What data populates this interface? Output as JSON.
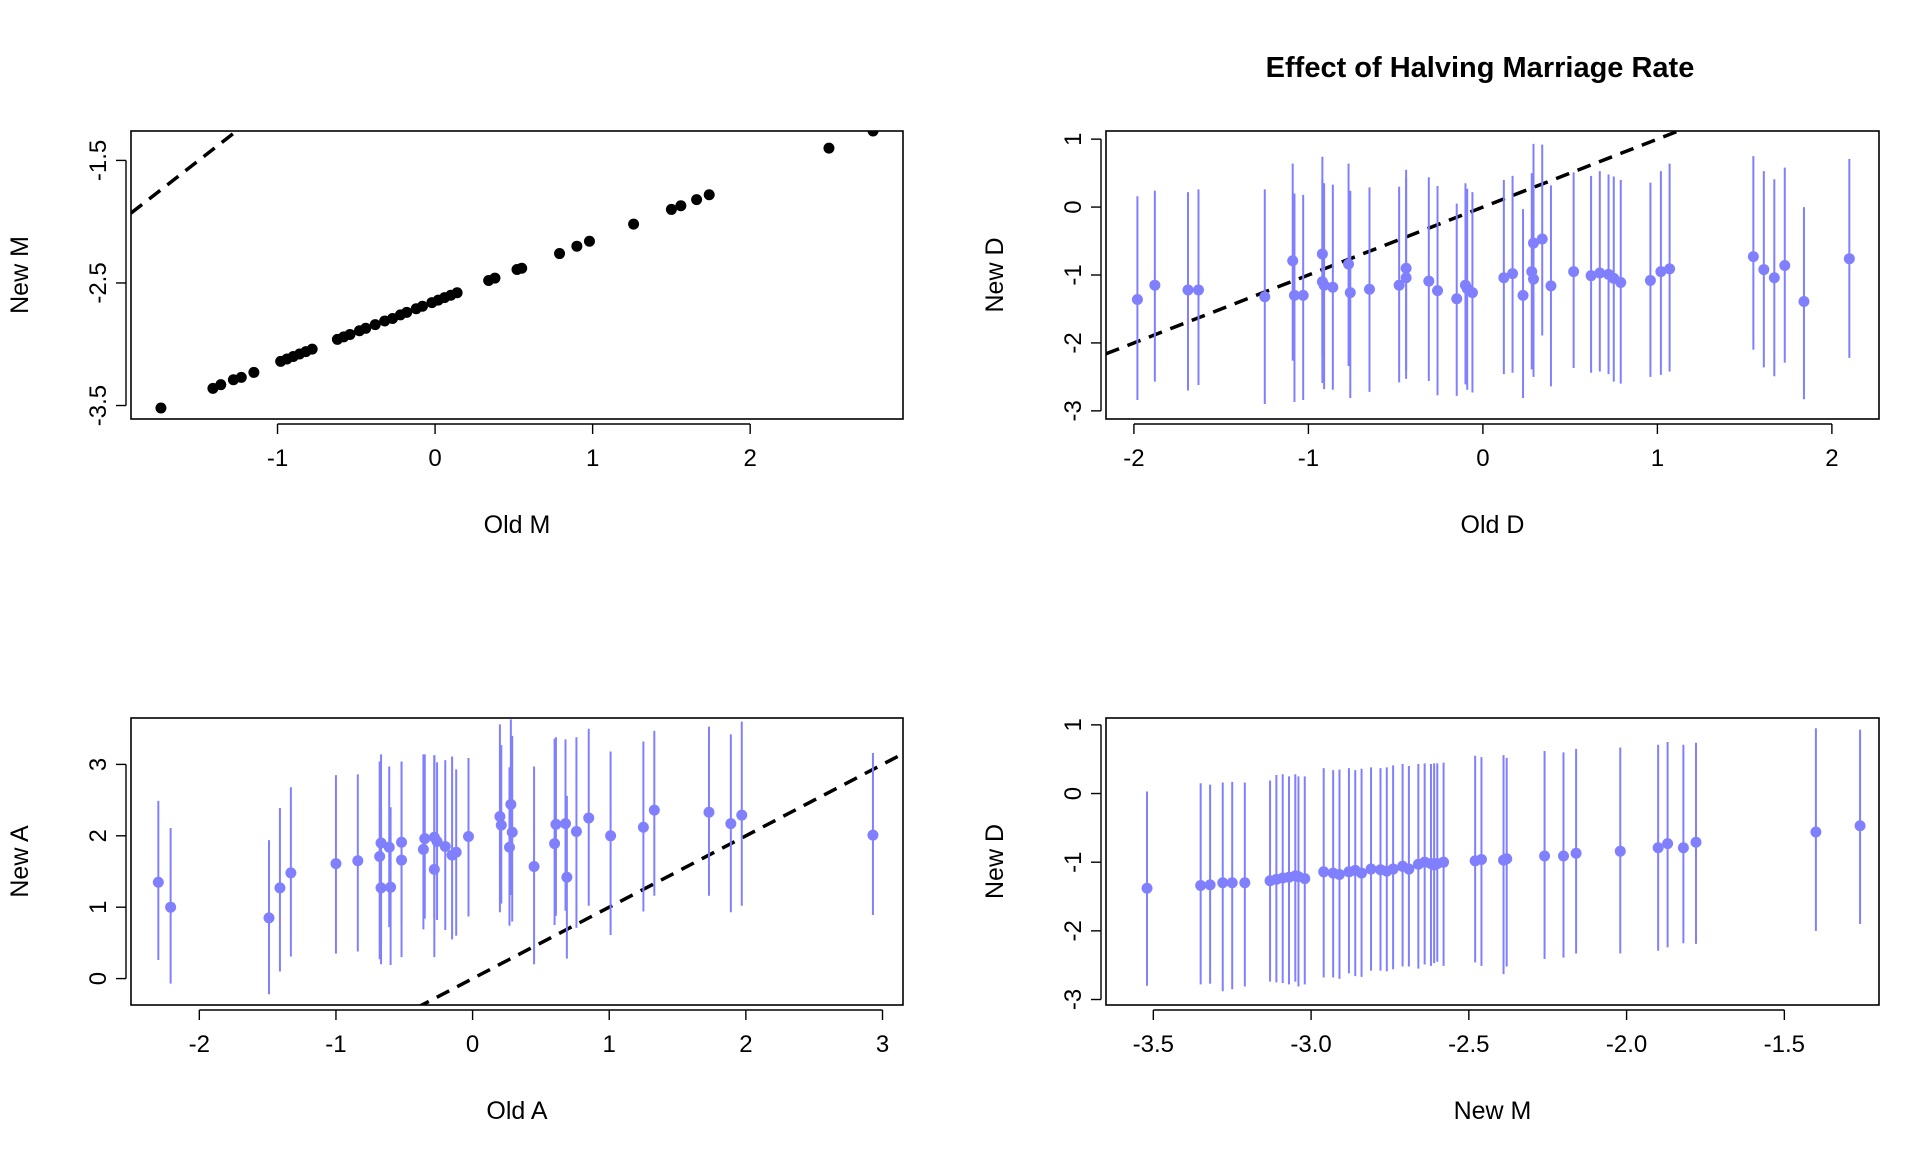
{
  "figure": {
    "main_title": "Effect of Halving Marriage Rate"
  },
  "colors": {
    "points_black": "#000000",
    "points_blue": "#8080FF",
    "reference_line": "#000000"
  },
  "chart_data": [
    {
      "id": "panel-old-m-new-m",
      "type": "scatter",
      "title": "",
      "xlabel": "Old M",
      "ylabel": "New M",
      "xlim": [
        -1.93,
        2.97
      ],
      "ylim": [
        -3.61,
        -1.26
      ],
      "xticks": [
        -1,
        0,
        1,
        2
      ],
      "xtick_labels": [
        "-1",
        "0",
        "1",
        "2"
      ],
      "yticks": [
        -3.5,
        -2.5,
        -1.5
      ],
      "ytick_labels": [
        "-3.5",
        "-2.5",
        "-1.5"
      ],
      "reference_line": {
        "slope": 1,
        "intercept": 0,
        "style": "dashed"
      },
      "series": [
        {
          "color": "#000000",
          "x": [
            -1.74,
            -1.41,
            -1.36,
            -1.28,
            -1.23,
            -1.15,
            -0.98,
            -0.94,
            -0.9,
            -0.86,
            -0.82,
            -0.78,
            -0.62,
            -0.58,
            -0.54,
            -0.48,
            -0.44,
            -0.38,
            -0.32,
            -0.27,
            -0.22,
            -0.18,
            -0.12,
            -0.08,
            -0.02,
            0.02,
            0.06,
            0.1,
            0.14,
            0.34,
            0.38,
            0.52,
            0.55,
            0.79,
            0.9,
            0.98,
            1.26,
            1.5,
            1.56,
            1.66,
            1.74,
            2.5,
            2.78
          ],
          "y": [
            -3.52,
            -3.36,
            -3.33,
            -3.29,
            -3.27,
            -3.23,
            -3.14,
            -3.12,
            -3.1,
            -3.08,
            -3.06,
            -3.04,
            -2.96,
            -2.94,
            -2.92,
            -2.89,
            -2.87,
            -2.84,
            -2.81,
            -2.79,
            -2.76,
            -2.74,
            -2.71,
            -2.69,
            -2.66,
            -2.64,
            -2.62,
            -2.6,
            -2.58,
            -2.48,
            -2.46,
            -2.39,
            -2.38,
            -2.26,
            -2.2,
            -2.16,
            -2.02,
            -1.9,
            -1.87,
            -1.82,
            -1.78,
            -1.4,
            -1.26
          ]
        }
      ]
    },
    {
      "id": "panel-old-d-new-d",
      "type": "scatter",
      "title": "Effect of Halving Marriage Rate",
      "xlabel": "Old D",
      "ylabel": "New D",
      "xlim": [
        -2.16,
        2.27
      ],
      "ylim": [
        -3.12,
        1.12
      ],
      "xticks": [
        -2,
        -1,
        0,
        1,
        2
      ],
      "xtick_labels": [
        "-2",
        "-1",
        "0",
        "1",
        "2"
      ],
      "yticks": [
        -3,
        -2,
        -1,
        0,
        1
      ],
      "ytick_labels": [
        "-3",
        "-2",
        "-1",
        "0",
        "1"
      ],
      "reference_line": {
        "slope": 1,
        "intercept": 0,
        "style": "dashed"
      },
      "series": [
        {
          "color": "#8080FF",
          "error_bars": "vertical",
          "x": [
            -1.98,
            -1.88,
            -1.69,
            -1.63,
            -1.25,
            -1.09,
            -1.08,
            -1.03,
            -0.92,
            -0.92,
            -0.91,
            -0.86,
            -0.77,
            -0.76,
            -0.65,
            -0.48,
            -0.44,
            -0.44,
            -0.31,
            -0.26,
            -0.15,
            -0.1,
            -0.09,
            -0.06,
            0.12,
            0.17,
            0.23,
            0.28,
            0.29,
            0.29,
            0.34,
            0.39,
            0.52,
            0.62,
            0.67,
            0.72,
            0.75,
            0.79,
            0.96,
            1.02,
            1.07,
            1.55,
            1.61,
            1.67,
            1.73,
            1.84,
            2.1
          ],
          "y": [
            -1.36,
            -1.15,
            -1.22,
            -1.22,
            -1.32,
            -0.79,
            -1.3,
            -1.3,
            -0.69,
            -1.1,
            -1.15,
            -1.18,
            -0.84,
            -1.26,
            -1.21,
            -1.15,
            -0.9,
            -1.04,
            -1.09,
            -1.23,
            -1.35,
            -1.15,
            -1.2,
            -1.26,
            -1.04,
            -0.98,
            -1.3,
            -0.95,
            -1.06,
            -0.53,
            -0.47,
            -1.16,
            -0.95,
            -1.01,
            -0.97,
            -0.99,
            -1.05,
            -1.11,
            -1.08,
            -0.95,
            -0.91,
            -0.73,
            -0.92,
            -1.04,
            -0.86,
            -1.39,
            -0.76
          ],
          "y_low": [
            -2.84,
            -2.57,
            -2.7,
            -2.62,
            -2.9,
            -2.26,
            -2.87,
            -2.84,
            -2.18,
            -2.59,
            -2.68,
            -2.69,
            -2.34,
            -2.81,
            -2.72,
            -2.58,
            -2.41,
            -2.53,
            -2.56,
            -2.77,
            -2.78,
            -2.61,
            -2.69,
            -2.73,
            -2.46,
            -2.44,
            -2.81,
            -2.39,
            -2.5,
            -1.96,
            -1.89,
            -2.64,
            -2.37,
            -2.44,
            -2.42,
            -2.46,
            -2.57,
            -2.6,
            -2.5,
            -2.47,
            -2.42,
            -2.1,
            -2.36,
            -2.49,
            -2.29,
            -2.83,
            -2.22
          ],
          "y_high": [
            0.16,
            0.24,
            0.22,
            0.26,
            0.26,
            0.64,
            0.2,
            0.18,
            0.74,
            0.41,
            0.35,
            0.33,
            0.64,
            0.24,
            0.29,
            0.3,
            0.55,
            0.43,
            0.44,
            0.31,
            0.05,
            0.35,
            0.27,
            0.22,
            0.4,
            0.46,
            -0.03,
            0.5,
            0.41,
            0.93,
            0.92,
            0.32,
            0.51,
            0.46,
            0.53,
            0.48,
            0.45,
            0.4,
            0.36,
            0.53,
            0.64,
            0.75,
            0.53,
            0.41,
            0.58,
            0.0,
            0.71
          ]
        }
      ]
    },
    {
      "id": "panel-old-a-new-a",
      "type": "scatter",
      "title": "",
      "xlabel": "Old A",
      "ylabel": "New A",
      "xlim": [
        -2.5,
        3.15
      ],
      "ylim": [
        -0.37,
        3.65
      ],
      "xticks": [
        -2,
        -1,
        0,
        1,
        2,
        3
      ],
      "xtick_labels": [
        "-2",
        "-1",
        "0",
        "1",
        "2",
        "3"
      ],
      "yticks": [
        0,
        1,
        2,
        3
      ],
      "ytick_labels": [
        "0",
        "1",
        "2",
        "3"
      ],
      "reference_line": {
        "slope": 1,
        "intercept": 0,
        "style": "dashed"
      },
      "series": [
        {
          "color": "#8080FF",
          "error_bars": "vertical",
          "x": [
            -2.3,
            -2.21,
            -1.49,
            -1.41,
            -1.33,
            -1.0,
            -0.84,
            -0.68,
            -0.67,
            -0.67,
            -0.61,
            -0.6,
            -0.52,
            -0.52,
            -0.36,
            -0.35,
            -0.28,
            -0.28,
            -0.26,
            -0.2,
            -0.15,
            -0.12,
            -0.03,
            0.2,
            0.21,
            0.27,
            0.28,
            0.29,
            0.45,
            0.6,
            0.61,
            0.68,
            0.69,
            0.76,
            0.85,
            1.01,
            1.25,
            1.33,
            1.73,
            1.89,
            1.97,
            2.93
          ],
          "y": [
            1.35,
            1.0,
            0.85,
            1.27,
            1.48,
            1.61,
            1.65,
            1.71,
            1.9,
            1.27,
            1.84,
            1.28,
            1.91,
            1.66,
            1.81,
            1.96,
            1.53,
            1.98,
            1.92,
            1.85,
            1.73,
            1.77,
            1.99,
            2.27,
            2.15,
            1.84,
            2.44,
            2.05,
            1.57,
            1.89,
            2.16,
            2.17,
            1.42,
            2.06,
            2.25,
            2.0,
            2.12,
            2.36,
            2.33,
            2.17,
            2.29,
            2.01
          ],
          "y_low": [
            0.26,
            -0.07,
            -0.22,
            0.1,
            0.31,
            0.35,
            0.38,
            0.27,
            0.52,
            0.2,
            0.72,
            0.19,
            0.78,
            0.3,
            0.69,
            0.84,
            0.3,
            0.84,
            0.82,
            0.68,
            0.55,
            0.6,
            0.87,
            0.93,
            1.05,
            0.74,
            1.17,
            0.8,
            0.2,
            0.75,
            0.88,
            0.95,
            0.28,
            0.71,
            1.02,
            0.61,
            0.94,
            1.16,
            1.16,
            0.93,
            1.02,
            0.89
          ],
          "y_high": [
            2.49,
            2.11,
            1.94,
            2.39,
            2.68,
            2.85,
            2.86,
            3.04,
            3.14,
            2.37,
            2.97,
            2.4,
            3.04,
            3.04,
            3.14,
            3.14,
            3.12,
            3.13,
            3.03,
            3.06,
            3.11,
            2.93,
            3.09,
            3.56,
            3.27,
            2.96,
            3.63,
            3.4,
            2.97,
            3.36,
            3.38,
            3.35,
            2.56,
            3.38,
            3.5,
            3.18,
            3.32,
            3.47,
            3.53,
            3.42,
            3.6,
            3.16
          ]
        }
      ]
    },
    {
      "id": "panel-new-m-new-d",
      "type": "scatter",
      "title": "",
      "xlabel": "New M",
      "ylabel": "New D",
      "xlim": [
        -3.65,
        -1.2
      ],
      "ylim": [
        -3.08,
        1.1
      ],
      "xticks": [
        -3.5,
        -3.0,
        -2.5,
        -2.0,
        -1.5
      ],
      "xtick_labels": [
        "-3.5",
        "-3.0",
        "-2.5",
        "-2.0",
        "-1.5"
      ],
      "yticks": [
        -3,
        -2,
        -1,
        0,
        1
      ],
      "ytick_labels": [
        "-3",
        "-2",
        "-1",
        "0",
        "1"
      ],
      "series": [
        {
          "color": "#8080FF",
          "error_bars": "vertical",
          "x": [
            -3.52,
            -3.35,
            -3.32,
            -3.28,
            -3.25,
            -3.21,
            -3.13,
            -3.11,
            -3.09,
            -3.07,
            -3.05,
            -3.04,
            -3.02,
            -2.96,
            -2.93,
            -2.91,
            -2.88,
            -2.86,
            -2.84,
            -2.81,
            -2.78,
            -2.76,
            -2.74,
            -2.71,
            -2.69,
            -2.66,
            -2.64,
            -2.62,
            -2.61,
            -2.6,
            -2.58,
            -2.48,
            -2.46,
            -2.39,
            -2.38,
            -2.26,
            -2.2,
            -2.16,
            -2.02,
            -1.9,
            -1.87,
            -1.82,
            -1.78,
            -1.4,
            -1.26
          ],
          "y": [
            -1.38,
            -1.34,
            -1.33,
            -1.3,
            -1.3,
            -1.3,
            -1.27,
            -1.25,
            -1.23,
            -1.22,
            -1.2,
            -1.21,
            -1.24,
            -1.14,
            -1.16,
            -1.18,
            -1.14,
            -1.12,
            -1.16,
            -1.1,
            -1.11,
            -1.13,
            -1.1,
            -1.06,
            -1.1,
            -1.03,
            -1.0,
            -1.02,
            -1.04,
            -1.02,
            -1.0,
            -0.98,
            -0.96,
            -0.97,
            -0.95,
            -0.91,
            -0.91,
            -0.87,
            -0.84,
            -0.79,
            -0.73,
            -0.79,
            -0.71,
            -0.56,
            -0.47
          ],
          "y_low": [
            -2.8,
            -2.78,
            -2.77,
            -2.88,
            -2.85,
            -2.81,
            -2.74,
            -2.75,
            -2.76,
            -2.78,
            -2.74,
            -2.81,
            -2.78,
            -2.68,
            -2.68,
            -2.7,
            -2.62,
            -2.66,
            -2.67,
            -2.58,
            -2.58,
            -2.59,
            -2.56,
            -2.52,
            -2.52,
            -2.55,
            -2.49,
            -2.51,
            -2.47,
            -2.45,
            -2.51,
            -2.46,
            -2.51,
            -2.63,
            -2.52,
            -2.41,
            -2.39,
            -2.33,
            -2.33,
            -2.29,
            -2.24,
            -2.18,
            -2.19,
            -2.0,
            -1.9
          ],
          "y_high": [
            0.03,
            0.15,
            0.13,
            0.16,
            0.17,
            0.16,
            0.19,
            0.27,
            0.28,
            0.25,
            0.28,
            0.25,
            0.25,
            0.37,
            0.34,
            0.35,
            0.37,
            0.34,
            0.36,
            0.38,
            0.37,
            0.38,
            0.41,
            0.43,
            0.4,
            0.43,
            0.44,
            0.43,
            0.44,
            0.44,
            0.45,
            0.55,
            0.53,
            0.56,
            0.52,
            0.62,
            0.6,
            0.65,
            0.67,
            0.71,
            0.75,
            0.71,
            0.74,
            0.95,
            0.93
          ]
        }
      ]
    }
  ]
}
